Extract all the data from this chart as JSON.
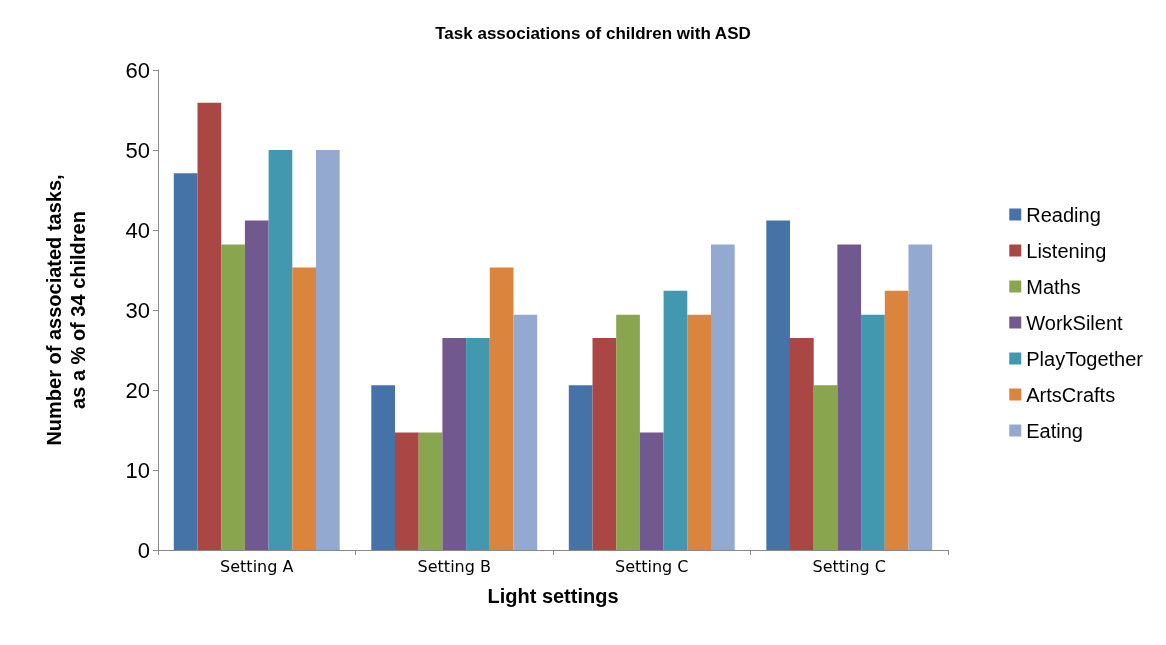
{
  "chart_data": {
    "type": "bar",
    "title": "Task associations of children with ASD",
    "xlabel": "Light settings",
    "ylabel": "Number of associated tasks,\nas a % of 34 children",
    "categories": [
      "Setting A",
      "Setting B",
      "Setting C",
      "Setting C"
    ],
    "series": [
      {
        "name": "Reading",
        "color": "#4572a7",
        "values": [
          47.1,
          20.6,
          20.6,
          41.2
        ]
      },
      {
        "name": "Listening",
        "color": "#aa4643",
        "values": [
          55.9,
          14.7,
          26.5,
          26.5
        ]
      },
      {
        "name": "Maths",
        "color": "#89a54e",
        "values": [
          38.2,
          14.7,
          29.4,
          20.6
        ]
      },
      {
        "name": "WorkSilent",
        "color": "#71588f",
        "values": [
          41.2,
          26.5,
          14.7,
          38.2
        ]
      },
      {
        "name": "PlayTogether",
        "color": "#4198af",
        "values": [
          50,
          26.5,
          32.4,
          29.4
        ]
      },
      {
        "name": "ArtsCrafts",
        "color": "#db843d",
        "values": [
          35.3,
          35.3,
          29.4,
          32.4
        ]
      },
      {
        "name": "Eating",
        "color": "#93a9cf",
        "values": [
          50,
          29.4,
          38.2,
          38.2
        ]
      }
    ],
    "ylim": [
      0,
      60
    ],
    "yticks": [
      0,
      10,
      20,
      30,
      40,
      50,
      60
    ],
    "grid": false,
    "legend": "right"
  }
}
